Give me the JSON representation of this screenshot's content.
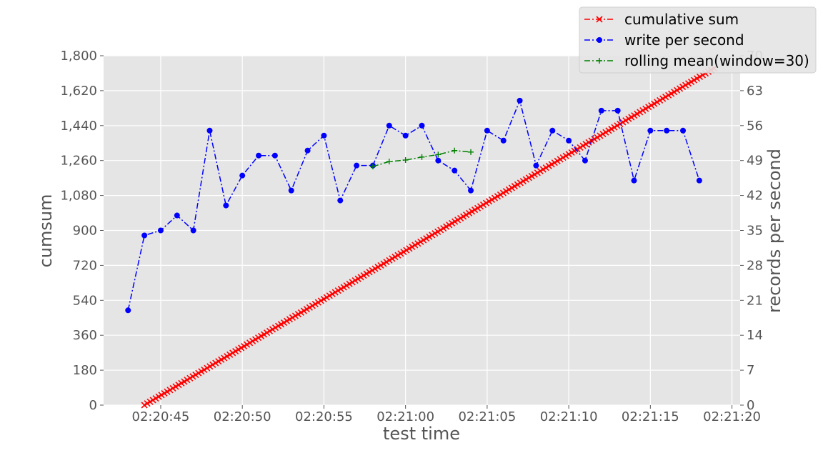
{
  "chart_data": {
    "type": "line",
    "xlabel": "test time",
    "ylabel_left": "cumsum",
    "ylabel_right": "records per second",
    "x_ticks": [
      "02:20:45",
      "02:20:50",
      "02:20:55",
      "02:21:00",
      "02:21:05",
      "02:21:10",
      "02:21:15",
      "02:21:20"
    ],
    "x_range_seconds_of_02_20": [
      41.5,
      80.5
    ],
    "left_y_ticks": [
      "0",
      "180",
      "360",
      "540",
      "720",
      "900",
      "1,080",
      "1,260",
      "1,440",
      "1,620",
      "1,800"
    ],
    "left_ylim": [
      0,
      1800
    ],
    "right_y_ticks": [
      "0",
      "7",
      "14",
      "21",
      "28",
      "35",
      "42",
      "49",
      "56",
      "63",
      "70"
    ],
    "right_ylim": [
      0,
      70
    ],
    "grid": true,
    "legend_position": "top-right",
    "series": [
      {
        "name": "cumulative sum",
        "axis": "left",
        "color": "#ff0000",
        "marker": "x",
        "line_style": "dash-dot",
        "x_start_seconds": 44.0,
        "x_end_seconds": 78.9,
        "y_start": 0,
        "y_end": 1735
      },
      {
        "name": "write per second",
        "axis": "right",
        "color": "#0000ff",
        "marker": "o",
        "line_style": "dash-dot",
        "x_seconds": [
          43,
          44,
          45,
          46,
          47,
          48,
          49,
          50,
          51,
          52,
          53,
          54,
          55,
          56,
          57,
          58,
          59,
          60,
          61,
          62,
          63,
          64,
          65,
          66,
          67,
          68,
          69,
          70,
          71,
          72,
          73,
          74,
          75,
          76,
          77,
          78
        ],
        "values": [
          19,
          34,
          35,
          38,
          35,
          55,
          40,
          46,
          50,
          50,
          43,
          51,
          54,
          41,
          48,
          48,
          56,
          54,
          56,
          49,
          47,
          43,
          55,
          53,
          61,
          48,
          55,
          53,
          49,
          59,
          59,
          45,
          55,
          55,
          55,
          45
        ]
      },
      {
        "name": "rolling mean(window=30)",
        "axis": "right",
        "color": "#008000",
        "marker": "+",
        "line_style": "dash-dot",
        "x_seconds": [
          58,
          59,
          60,
          61,
          62,
          63,
          64
        ],
        "values": [
          47.8,
          48.8,
          49.1,
          49.7,
          50.2,
          51.0,
          50.7
        ]
      }
    ]
  }
}
